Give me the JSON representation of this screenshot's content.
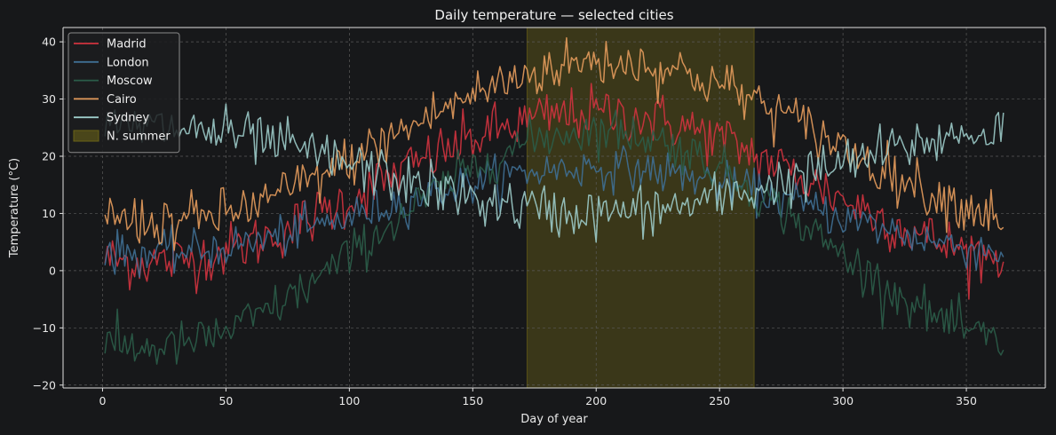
{
  "chart_data": {
    "type": "line",
    "title": "Daily temperature — selected cities",
    "xlabel": "Day of year",
    "ylabel": "Temperature (°C)",
    "xlim": [
      -16,
      382
    ],
    "ylim": [
      -20.5,
      42.5
    ],
    "xticks": [
      0,
      50,
      100,
      150,
      200,
      250,
      300,
      350
    ],
    "yticks": [
      -20,
      -10,
      0,
      10,
      20,
      30,
      40
    ],
    "ytick_labels": [
      "−20",
      "−10",
      "0",
      "10",
      "20",
      "30",
      "40"
    ],
    "grid": true,
    "legend_position": "top-left",
    "shaded_region": {
      "name": "N. summer",
      "x_start": 172,
      "x_end": 264,
      "color": "#6b6317"
    },
    "series": [
      {
        "name": "Madrid",
        "color": "#d0333f",
        "model": {
          "mean": 14.5,
          "amp": 13,
          "peak": 200,
          "noise": 3.2
        }
      },
      {
        "name": "London",
        "color": "#3f6f94",
        "model": {
          "mean": 10.5,
          "amp": 7.5,
          "peak": 200,
          "noise": 2.4
        }
      },
      {
        "name": "Moscow",
        "color": "#2b5d49",
        "model": {
          "mean": 5.5,
          "amp": 19,
          "peak": 200,
          "noise": 2.6
        }
      },
      {
        "name": "Cairo",
        "color": "#e49b5c",
        "model": {
          "mean": 22.5,
          "amp": 14,
          "peak": 205,
          "noise": 3.0
        }
      },
      {
        "name": "Sydney",
        "color": "#9ccbc9",
        "model": {
          "mean": 17.5,
          "amp": -7.5,
          "peak": 200,
          "noise": 3.0
        }
      }
    ]
  }
}
